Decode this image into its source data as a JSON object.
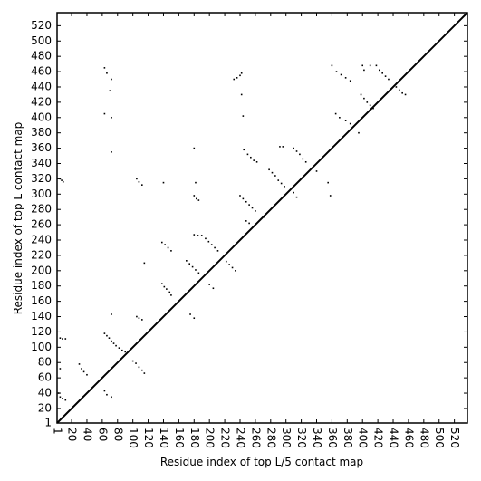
{
  "chart_data": {
    "type": "scatter",
    "x_label": "Residue index of top L/5 contact map",
    "y_label": "Residue index of top L contact map",
    "xlim": [
      1,
      537
    ],
    "ylim": [
      1,
      537
    ],
    "xticks": [
      1,
      20,
      40,
      60,
      80,
      100,
      120,
      140,
      160,
      180,
      200,
      220,
      240,
      260,
      280,
      300,
      320,
      340,
      360,
      380,
      400,
      420,
      440,
      460,
      480,
      500,
      520
    ],
    "yticks": [
      1,
      20,
      40,
      60,
      80,
      100,
      120,
      140,
      160,
      180,
      200,
      220,
      240,
      260,
      280,
      300,
      320,
      340,
      360,
      380,
      400,
      420,
      440,
      460,
      480,
      500,
      520
    ],
    "diagonal": true,
    "color": "#000000",
    "x": [
      5,
      7,
      9,
      5,
      8,
      12,
      5,
      3,
      5,
      8,
      12,
      30,
      33,
      36,
      40,
      63,
      66,
      69,
      72,
      75,
      78,
      82,
      86,
      90,
      63,
      66,
      72,
      100,
      104,
      108,
      112,
      115,
      105,
      108,
      112,
      105,
      108,
      112,
      115,
      72,
      63,
      66,
      72,
      70,
      63,
      72,
      72,
      140,
      138,
      141,
      144,
      148,
      150,
      138,
      142,
      146,
      150,
      170,
      174,
      178,
      182,
      186,
      175,
      180,
      180,
      183,
      186,
      180,
      182,
      180,
      185,
      190,
      195,
      199,
      203,
      207,
      211,
      200,
      205,
      222,
      226,
      230,
      234,
      232,
      236,
      240,
      242,
      242,
      244,
      240,
      244,
      248,
      252,
      256,
      260,
      245,
      250,
      254,
      258,
      262,
      248,
      252,
      272,
      278,
      282,
      286,
      290,
      294,
      298,
      292,
      296,
      310,
      314,
      318,
      322,
      326,
      310,
      314,
      340,
      355,
      358,
      360,
      366,
      372,
      378,
      384,
      365,
      370,
      378,
      384,
      395,
      400,
      402,
      410,
      398,
      402,
      406,
      410,
      414,
      418,
      422,
      426,
      430,
      434,
      444,
      448,
      452,
      456
    ],
    "y": [
      320,
      318,
      316,
      112,
      111,
      111,
      72,
      40,
      35,
      33,
      31,
      78,
      72,
      68,
      64,
      118,
      115,
      112,
      108,
      105,
      102,
      99,
      96,
      94,
      43,
      38,
      35,
      82,
      79,
      74,
      70,
      66,
      140,
      138,
      136,
      320,
      316,
      312,
      210,
      143,
      465,
      458,
      450,
      435,
      405,
      400,
      355,
      315,
      183,
      179,
      176,
      172,
      168,
      237,
      234,
      230,
      226,
      213,
      209,
      205,
      201,
      197,
      143,
      138,
      298,
      294,
      292,
      360,
      315,
      247,
      246,
      246,
      242,
      238,
      234,
      230,
      226,
      182,
      177,
      212,
      208,
      204,
      200,
      450,
      452,
      455,
      458,
      430,
      402,
      298,
      294,
      290,
      286,
      282,
      278,
      358,
      352,
      348,
      344,
      342,
      265,
      262,
      270,
      332,
      328,
      324,
      318,
      314,
      310,
      362,
      362,
      360,
      356,
      352,
      346,
      342,
      302,
      296,
      330,
      315,
      298,
      468,
      460,
      456,
      452,
      448,
      405,
      400,
      396,
      392,
      380,
      468,
      462,
      468,
      430,
      425,
      420,
      416,
      412,
      468,
      462,
      458,
      454,
      450,
      440,
      436,
      432,
      430
    ]
  }
}
